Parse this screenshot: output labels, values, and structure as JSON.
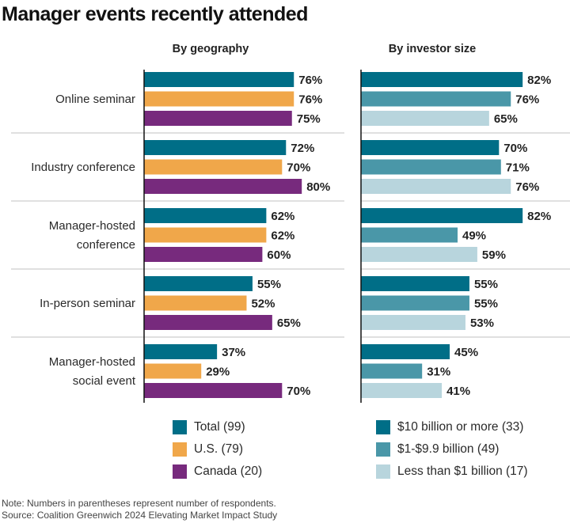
{
  "title": "Manager events recently attended",
  "note": "Note: Numbers in parentheses represent number of respondents.",
  "source": "Source: Coalition Greenwich 2024 Elevating Market Impact Study",
  "chart_data": [
    {
      "type": "bar",
      "orientation": "horizontal",
      "title": "By geography",
      "categories": [
        "Online seminar",
        "Industry conference",
        "Manager-hosted conference",
        "In-person seminar",
        "Manager-hosted social event"
      ],
      "category_lines": [
        [
          "Online seminar"
        ],
        [
          "Industry conference"
        ],
        [
          "Manager-hosted",
          "conference"
        ],
        [
          "In-person seminar"
        ],
        [
          "Manager-hosted",
          "social event"
        ]
      ],
      "series": [
        {
          "name": "Total (99)",
          "color": "#006E87",
          "values": [
            76,
            72,
            62,
            55,
            37
          ]
        },
        {
          "name": "U.S. (79)",
          "color": "#F0A74A",
          "values": [
            76,
            70,
            62,
            52,
            29
          ]
        },
        {
          "name": "Canada (20)",
          "color": "#772A7D",
          "values": [
            75,
            80,
            60,
            65,
            70
          ]
        }
      ],
      "value_suffix": "%",
      "xlim": [
        0,
        100
      ],
      "grid": false,
      "legend": "bottom"
    },
    {
      "type": "bar",
      "orientation": "horizontal",
      "title": "By investor size",
      "categories": [
        "Online seminar",
        "Industry conference",
        "Manager-hosted conference",
        "In-person seminar",
        "Manager-hosted social event"
      ],
      "series": [
        {
          "name": "$10 billion or more (33)",
          "color": "#006E87",
          "values": [
            82,
            70,
            82,
            55,
            45
          ]
        },
        {
          "name": "$1-$9.9 billion (49)",
          "color": "#4A97A8",
          "values": [
            76,
            71,
            49,
            55,
            31
          ]
        },
        {
          "name": "Less than $1 billion (17)",
          "color": "#B8D5DD",
          "values": [
            65,
            76,
            59,
            53,
            41
          ]
        }
      ],
      "value_suffix": "%",
      "xlim": [
        0,
        100
      ],
      "grid": false,
      "legend": "bottom"
    }
  ]
}
